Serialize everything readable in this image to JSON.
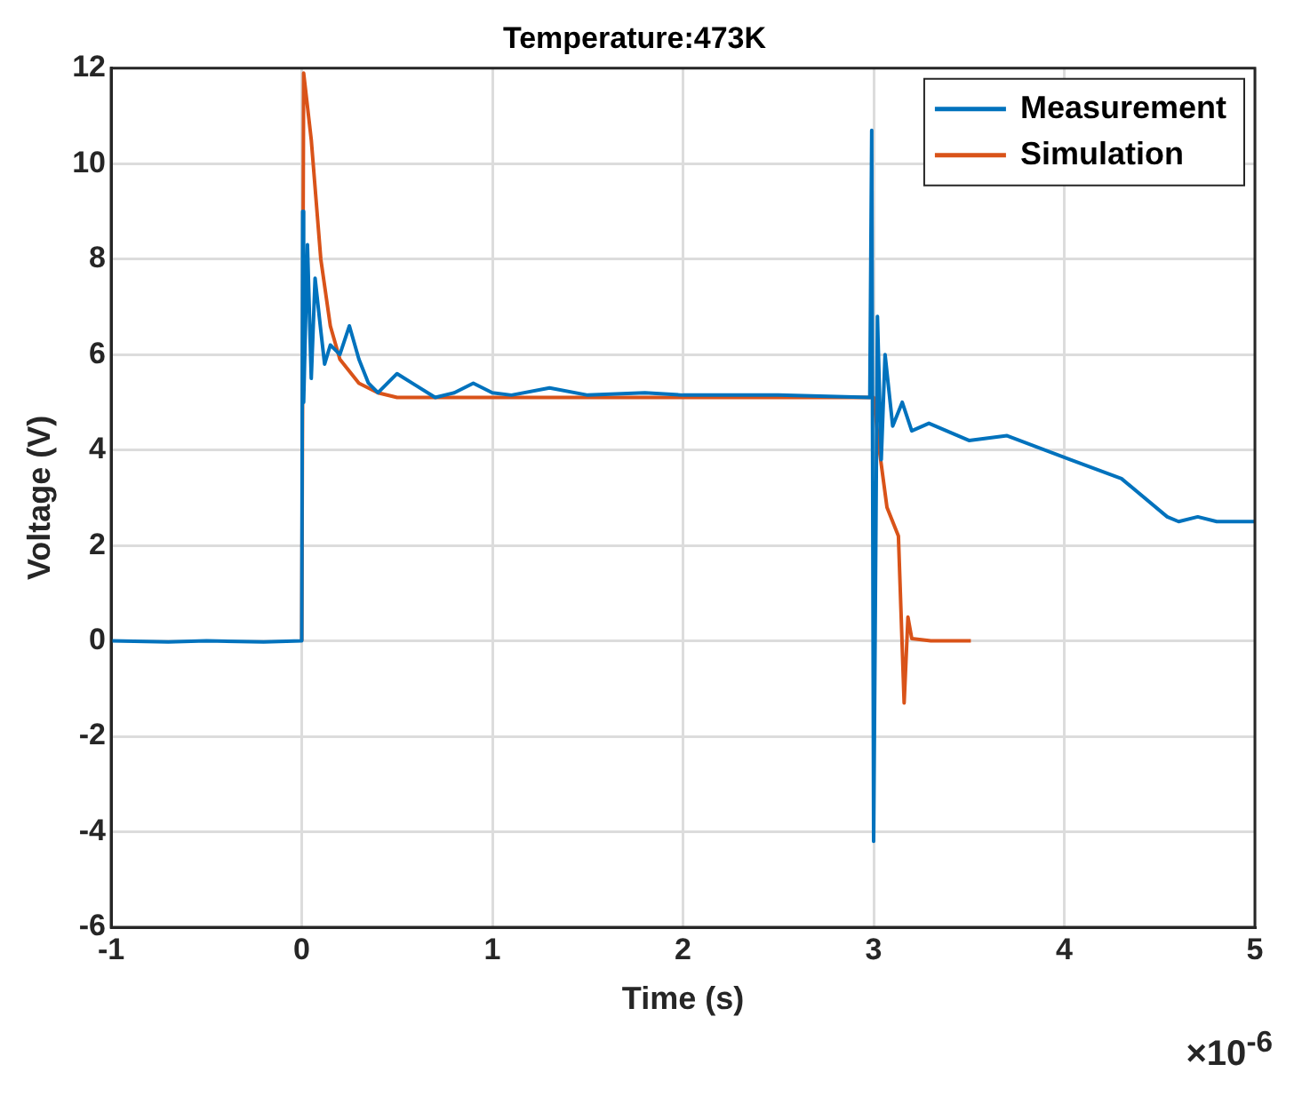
{
  "chart_data": {
    "type": "line",
    "title": "Temperature:473K",
    "xlabel": "Time (s)",
    "ylabel": "Voltage (V)",
    "annotations": [
      "×10$^{-6}$"
    ],
    "xlim": [
      -1,
      5
    ],
    "xticks": [
      -1,
      0,
      1,
      2,
      3,
      4,
      5
    ],
    "ylim": [
      -6,
      12
    ],
    "yticks": [
      -6,
      -4,
      -2,
      0,
      2,
      4,
      6,
      8,
      10,
      12
    ],
    "grid": true,
    "legend": "top right",
    "marker": "none",
    "line_style": "solid",
    "series": [
      {
        "name": "Measurement",
        "color": "#0072bd",
        "x": [
          -1,
          -0.7,
          -0.5,
          -0.2,
          0,
          0.005,
          0.01,
          0.03,
          0.05,
          0.07,
          0.1,
          0.12,
          0.15,
          0.2,
          0.25,
          0.3,
          0.35,
          0.4,
          0.5,
          0.6,
          0.7,
          0.8,
          0.9,
          1,
          1.1,
          1.3,
          1.5,
          1.8,
          2,
          2.5,
          2.98,
          2.99,
          3,
          3.02,
          3.04,
          3.06,
          3.1,
          3.15,
          3.2,
          3.29,
          3.5,
          3.7,
          4.03,
          4.3,
          4.54,
          4.6,
          4.7,
          4.8,
          5
        ],
        "values": [
          0,
          -0.02,
          0,
          -0.02,
          0,
          9,
          5,
          8.3,
          5.5,
          7.6,
          6.5,
          5.8,
          6.2,
          6,
          6.6,
          5.9,
          5.4,
          5.2,
          5.6,
          5.35,
          5.1,
          5.2,
          5.4,
          5.2,
          5.15,
          5.3,
          5.15,
          5.2,
          5.15,
          5.15,
          5.1,
          10.7,
          -4.2,
          6.8,
          3.8,
          6,
          4.5,
          5,
          4.4,
          4.56,
          4.2,
          4.3,
          3.8,
          3.4,
          2.6,
          2.5,
          2.6,
          2.5,
          2.5
        ]
      },
      {
        "name": "Simulation",
        "color": "#d95319",
        "x": [
          0,
          0.01,
          0.05,
          0.1,
          0.15,
          0.2,
          0.3,
          0.4,
          0.5,
          1,
          2,
          3,
          3.03,
          3.07,
          3.13,
          3.16,
          3.18,
          3.2,
          3.3,
          3.51
        ],
        "values": [
          0,
          11.9,
          10.5,
          8,
          6.6,
          5.9,
          5.4,
          5.2,
          5.1,
          5.1,
          5.1,
          5.1,
          4,
          2.8,
          2.2,
          -1.3,
          0.5,
          0.05,
          0,
          0
        ]
      }
    ]
  }
}
